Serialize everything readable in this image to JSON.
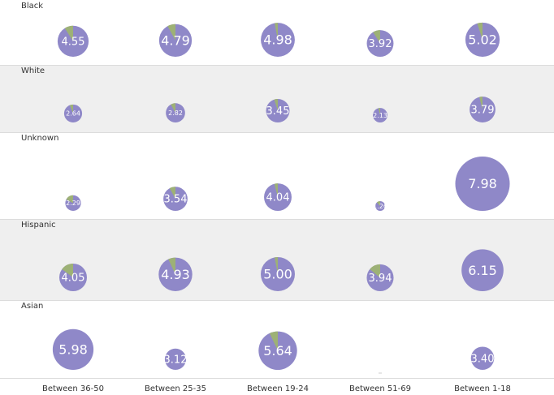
{
  "colors": {
    "main": "#8f88c8",
    "slice": "#9db176",
    "band": "#efefef",
    "divider": "#dcdcdc"
  },
  "chart_data": {
    "type": "pie",
    "description_type": "grid of bubble pie charts",
    "columns": [
      "Between 36-50",
      "Between 25-35",
      "Between 19-24",
      "Between 51-69",
      "Between 1-18"
    ],
    "rows": [
      {
        "name": "Black",
        "cells": [
          {
            "value": "4.55",
            "slice_fraction": 0.09
          },
          {
            "value": "4.79",
            "slice_fraction": 0.08
          },
          {
            "value": "4.98",
            "slice_fraction": 0.03
          },
          {
            "value": "3.92",
            "slice_fraction": 0.09
          },
          {
            "value": "5.02",
            "slice_fraction": 0.05
          }
        ]
      },
      {
        "name": "White",
        "cells": [
          {
            "value": "2.64",
            "slice_fraction": 0.06
          },
          {
            "value": "2.82",
            "slice_fraction": 0.08
          },
          {
            "value": "3.45",
            "slice_fraction": 0.05
          },
          {
            "value": "2.13",
            "slice_fraction": 0.04
          },
          {
            "value": "3.79",
            "slice_fraction": 0.04
          }
        ]
      },
      {
        "name": "Unknown",
        "cells": [
          {
            "value": "2.29",
            "slice_fraction": 0.17
          },
          {
            "value": "3.54",
            "slice_fraction": 0.08
          },
          {
            "value": "4.04",
            "slice_fraction": 0.04
          },
          {
            "value": "1.26",
            "slice_fraction": 0.12
          },
          {
            "value": "7.98",
            "slice_fraction": 0
          }
        ]
      },
      {
        "name": "Hispanic",
        "cells": [
          {
            "value": "4.05",
            "slice_fraction": 0.15
          },
          {
            "value": "4.93",
            "slice_fraction": 0.07
          },
          {
            "value": "5.00",
            "slice_fraction": 0.03
          },
          {
            "value": "3.94",
            "slice_fraction": 0.14
          },
          {
            "value": "6.15",
            "slice_fraction": 0
          }
        ]
      },
      {
        "name": "Asian",
        "cells": [
          {
            "value": "5.98",
            "slice_fraction": 0
          },
          {
            "value": "3.12",
            "slice_fraction": 0
          },
          {
            "value": "5.64",
            "slice_fraction": 0.07
          },
          {
            "value": null,
            "slice_fraction": 0
          },
          {
            "value": "3.40",
            "slice_fraction": 0
          }
        ]
      }
    ]
  }
}
